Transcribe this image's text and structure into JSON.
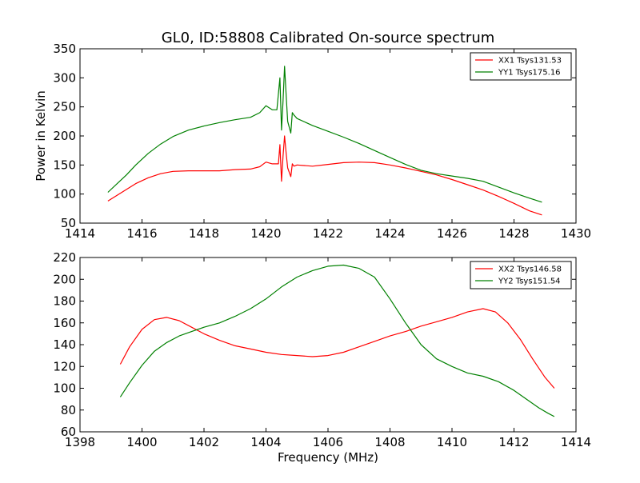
{
  "figure": {
    "title": "GL0, ID:58808 Calibrated On-source spectrum",
    "xlabel": "Frequency (MHz)",
    "ylabel": "Power in Kelvin"
  },
  "chart_data": [
    {
      "type": "line",
      "title": "GL0, ID:58808 Calibrated On-source spectrum",
      "xlabel": "",
      "ylabel": "Power in Kelvin",
      "xlim": [
        1414,
        1430
      ],
      "ylim": [
        50,
        350
      ],
      "xticks": [
        1414,
        1416,
        1418,
        1420,
        1422,
        1424,
        1426,
        1428,
        1430
      ],
      "yticks": [
        50,
        100,
        150,
        200,
        250,
        300,
        350
      ],
      "grid": false,
      "legend_position": "top-right",
      "series": [
        {
          "name": "XX1 Tsys131.53",
          "color": "#ff0000",
          "x": [
            1414.9,
            1415.2,
            1415.5,
            1415.8,
            1416.2,
            1416.6,
            1417.0,
            1417.5,
            1418.0,
            1418.5,
            1419.0,
            1419.5,
            1419.8,
            1420.0,
            1420.2,
            1420.4,
            1420.45,
            1420.5,
            1420.55,
            1420.6,
            1420.65,
            1420.7,
            1420.8,
            1420.85,
            1420.9,
            1421.0,
            1421.5,
            1422.0,
            1422.5,
            1423.0,
            1423.5,
            1424.0,
            1424.5,
            1425.0,
            1425.5,
            1426.0,
            1426.5,
            1427.0,
            1427.5,
            1428.0,
            1428.5,
            1428.9
          ],
          "values": [
            88,
            98,
            108,
            118,
            128,
            135,
            139,
            140,
            140,
            140,
            142,
            143,
            147,
            155,
            152,
            152,
            185,
            122,
            165,
            200,
            170,
            145,
            130,
            152,
            148,
            150,
            148,
            151,
            154,
            155,
            154,
            150,
            145,
            139,
            133,
            125,
            116,
            107,
            96,
            84,
            71,
            64
          ]
        },
        {
          "name": "YY1 Tsys175.16",
          "color": "#008000",
          "x": [
            1414.9,
            1415.2,
            1415.5,
            1415.8,
            1416.2,
            1416.6,
            1417.0,
            1417.5,
            1418.0,
            1418.5,
            1419.0,
            1419.5,
            1419.8,
            1420.0,
            1420.2,
            1420.35,
            1420.45,
            1420.5,
            1420.55,
            1420.6,
            1420.65,
            1420.7,
            1420.8,
            1420.85,
            1420.9,
            1421.0,
            1421.5,
            1422.0,
            1422.5,
            1423.0,
            1423.5,
            1424.0,
            1424.5,
            1425.0,
            1425.5,
            1426.0,
            1426.5,
            1427.0,
            1427.5,
            1428.0,
            1428.5,
            1428.9
          ],
          "values": [
            103,
            118,
            133,
            150,
            170,
            186,
            199,
            210,
            217,
            223,
            228,
            232,
            240,
            252,
            245,
            245,
            300,
            210,
            260,
            320,
            270,
            225,
            205,
            240,
            236,
            230,
            218,
            208,
            198,
            187,
            175,
            163,
            151,
            141,
            135,
            131,
            127,
            122,
            112,
            102,
            93,
            86
          ]
        }
      ]
    },
    {
      "type": "line",
      "title": "",
      "xlabel": "Frequency (MHz)",
      "ylabel": "",
      "xlim": [
        1398,
        1414
      ],
      "ylim": [
        60,
        220
      ],
      "xticks": [
        1398,
        1400,
        1402,
        1404,
        1406,
        1408,
        1410,
        1412,
        1414
      ],
      "yticks": [
        60,
        80,
        100,
        120,
        140,
        160,
        180,
        200,
        220
      ],
      "grid": false,
      "legend_position": "top-right",
      "series": [
        {
          "name": "XX2 Tsys146.58",
          "color": "#ff0000",
          "x": [
            1399.3,
            1399.6,
            1400.0,
            1400.4,
            1400.8,
            1401.2,
            1401.6,
            1402.0,
            1402.5,
            1403.0,
            1403.5,
            1404.0,
            1404.5,
            1405.0,
            1405.5,
            1406.0,
            1406.5,
            1407.0,
            1407.5,
            1408.0,
            1408.5,
            1409.0,
            1409.5,
            1410.0,
            1410.5,
            1411.0,
            1411.4,
            1411.8,
            1412.2,
            1412.6,
            1413.0,
            1413.3
          ],
          "values": [
            122,
            138,
            154,
            163,
            165,
            162,
            156,
            150,
            144,
            139,
            136,
            133,
            131,
            130,
            129,
            130,
            133,
            138,
            143,
            148,
            152,
            157,
            161,
            165,
            170,
            173,
            170,
            160,
            145,
            127,
            110,
            100
          ]
        },
        {
          "name": "YY2 Tsys151.54",
          "color": "#008000",
          "x": [
            1399.3,
            1399.6,
            1400.0,
            1400.4,
            1400.8,
            1401.2,
            1401.6,
            1402.0,
            1402.5,
            1403.0,
            1403.5,
            1404.0,
            1404.5,
            1405.0,
            1405.5,
            1406.0,
            1406.5,
            1407.0,
            1407.5,
            1408.0,
            1408.5,
            1409.0,
            1409.5,
            1410.0,
            1410.5,
            1411.0,
            1411.5,
            1412.0,
            1412.4,
            1412.8,
            1413.1,
            1413.3
          ],
          "values": [
            92,
            105,
            121,
            134,
            142,
            148,
            152,
            156,
            160,
            166,
            173,
            182,
            193,
            202,
            208,
            212,
            213,
            210,
            202,
            182,
            160,
            140,
            127,
            120,
            114,
            111,
            106,
            98,
            90,
            82,
            77,
            74
          ]
        }
      ]
    }
  ]
}
